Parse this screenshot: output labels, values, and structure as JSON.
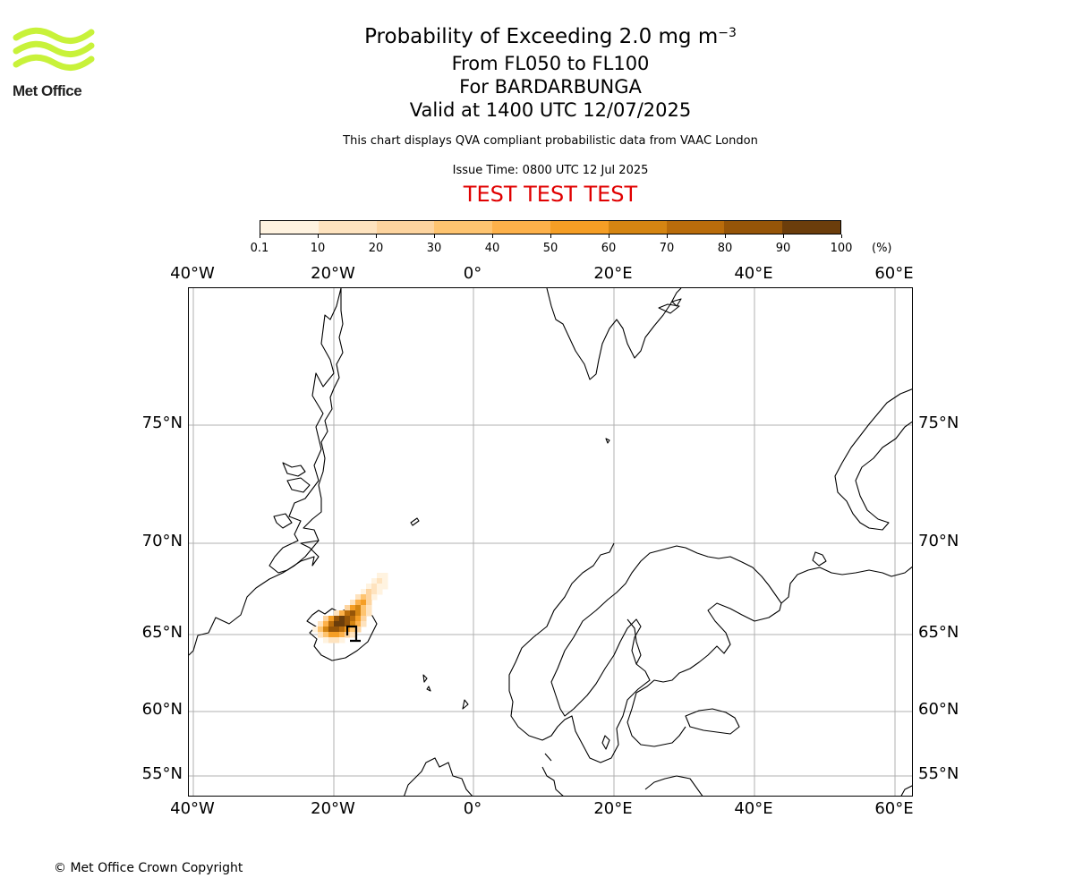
{
  "logo": {
    "text": "Met Office",
    "color": "#c8f23a"
  },
  "header": {
    "title_main": "Probability of Exceeding 2.0 mg m",
    "title_exponent": "−3",
    "flight_levels": "From FL050 to FL100",
    "volcano": "For BARDARBUNGA",
    "valid_time": "Valid at 1400 UTC 12/07/2025",
    "source_note": "This chart displays QVA compliant probabilistic data from VAAC London",
    "issue_time": "Issue Time: 0800 UTC 12 Jul 2025",
    "test_banner": "TEST TEST TEST",
    "test_color": "#e00000"
  },
  "colorbar": {
    "ticks": [
      "0.1",
      "10",
      "20",
      "30",
      "40",
      "50",
      "60",
      "70",
      "80",
      "90",
      "100"
    ],
    "unit": "(%)",
    "colors": [
      "#fff3e0",
      "#fee3bf",
      "#fdd49f",
      "#fec470",
      "#fdb14a",
      "#f59e25",
      "#d58512",
      "#b96c0b",
      "#965508",
      "#6b3d0b"
    ]
  },
  "map": {
    "lon_labels": [
      "40°W",
      "20°W",
      "0°",
      "20°E",
      "40°E",
      "60°E"
    ],
    "lat_labels": [
      "75°N",
      "70°N",
      "65°N",
      "60°N",
      "55°N"
    ],
    "volcano_name": "Bardarbunga",
    "grid_color": "#b0b0b0"
  },
  "footer": {
    "copyright": "© Met Office Crown Copyright"
  }
}
